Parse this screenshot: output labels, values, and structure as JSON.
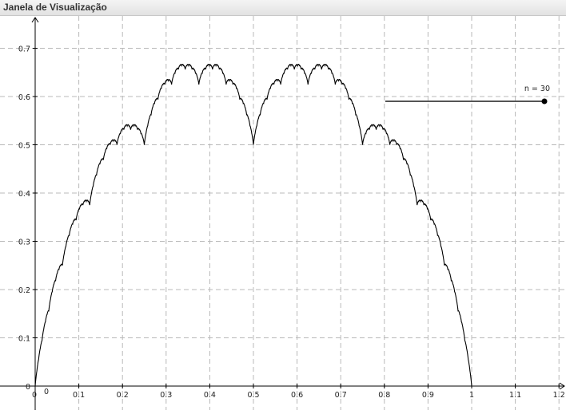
{
  "window": {
    "title": "Janela de Visualização"
  },
  "slider": {
    "label": "n = 30",
    "value": 30
  },
  "chart_data": {
    "type": "line",
    "title": "",
    "xlabel": "",
    "ylabel": "",
    "xlim": [
      -0.08,
      1.2
    ],
    "ylim": [
      -0.005,
      0.74
    ],
    "grid": true,
    "x_ticks": [
      "0",
      "0.1",
      "0.2",
      "0.3",
      "0.4",
      "0.5",
      "0.6",
      "0.7",
      "0.8",
      "0.9",
      "1",
      "1.1",
      "1.2"
    ],
    "y_ticks": [
      "0",
      "0.1",
      "0.2",
      "0.3",
      "0.4",
      "0.5",
      "0.6",
      "0.7"
    ],
    "origin_label": "0",
    "series": [
      {
        "color": "#000000",
        "x": [
          0,
          0.0625,
          0.125,
          0.1875,
          0.25,
          0.3125,
          0.375,
          0.4375,
          0.5,
          0.5625,
          0.625,
          0.6875,
          0.75,
          0.8125,
          0.875,
          0.9375,
          1
        ],
        "y": [
          0,
          0.25,
          0.375,
          0.5,
          0.5,
          0.625,
          0.625,
          0.625,
          0.5,
          0.625,
          0.625,
          0.625,
          0.5,
          0.5,
          0.375,
          0.25,
          0
        ]
      }
    ]
  }
}
